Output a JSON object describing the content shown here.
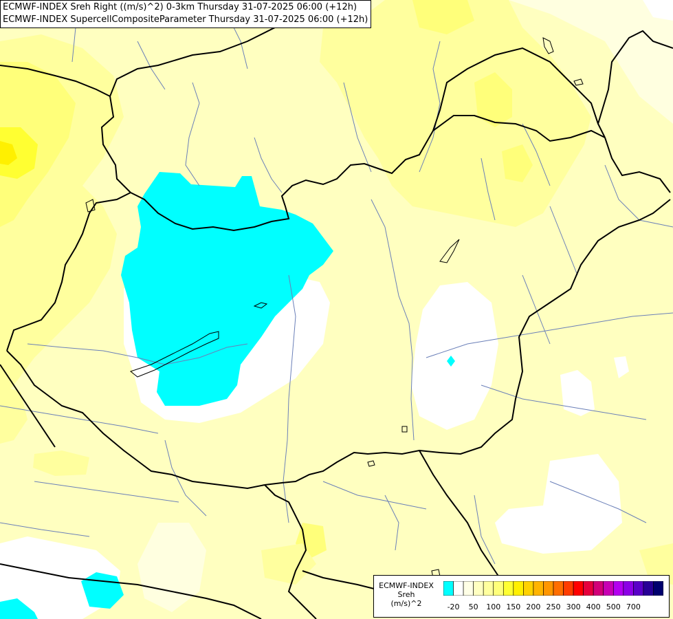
{
  "header": {
    "line1": "ECMWF-INDEX Sreh Right ((m/s)^2) 0-3km Thursday 31-07-2025 06:00 (+12h)",
    "line2": "ECMWF-INDEX SupercellCompositeParameter Thursday 31-07-2025 06:00 (+12h)"
  },
  "legend": {
    "line1": "ECMWF-INDEX",
    "line2": "Sreh",
    "line3": "(m/s)^2",
    "colors": [
      "#00ffff",
      "#ffffff",
      "#ffffe6",
      "#ffffc0",
      "#ffff9e",
      "#ffff7a",
      "#ffff32",
      "#fff000",
      "#ffd200",
      "#ffb400",
      "#ff9600",
      "#ff6e00",
      "#ff3c00",
      "#ff0000",
      "#e6003c",
      "#d20078",
      "#c800b4",
      "#b400f0",
      "#8c00e6",
      "#5a00c8",
      "#280096",
      "#00006e"
    ],
    "ticks": [
      {
        "label": "-20",
        "index": 1
      },
      {
        "label": "50",
        "index": 3
      },
      {
        "label": "100",
        "index": 5
      },
      {
        "label": "150",
        "index": 7
      },
      {
        "label": "200",
        "index": 9
      },
      {
        "label": "250",
        "index": 11
      },
      {
        "label": "300",
        "index": 13
      },
      {
        "label": "400",
        "index": 15
      },
      {
        "label": "500",
        "index": 17
      },
      {
        "label": "700",
        "index": 19
      }
    ]
  },
  "map": {
    "field_colors": {
      "white": "#ffffff",
      "pale": "#ffffe0",
      "light_yellow": "#ffffc0",
      "yellow": "#ffff9e",
      "mid_yellow": "#ffff7a",
      "bright_yellow": "#ffff32",
      "gold": "#fff000",
      "cyan": "#00ffff"
    },
    "border_color": "#000000",
    "river_color": "#6a7fb8"
  }
}
